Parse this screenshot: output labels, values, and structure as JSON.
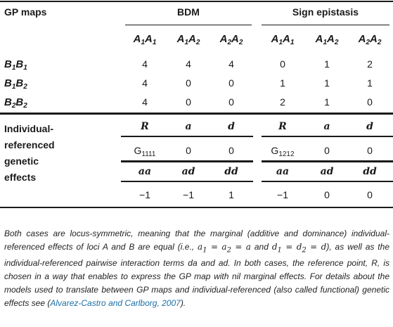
{
  "table": {
    "corner_label": "GP maps",
    "groups": [
      "BDM",
      "Sign epistasis"
    ],
    "genotypes_a": [
      {
        "base": "A",
        "s1": "1",
        "mid": "A",
        "s2": "1"
      },
      {
        "base": "A",
        "s1": "1",
        "mid": "A",
        "s2": "2"
      },
      {
        "base": "A",
        "s1": "2",
        "mid": "A",
        "s2": "2"
      },
      {
        "base": "A",
        "s1": "1",
        "mid": "A",
        "s2": "1"
      },
      {
        "base": "A",
        "s1": "1",
        "mid": "A",
        "s2": "2"
      },
      {
        "base": "A",
        "s1": "2",
        "mid": "A",
        "s2": "2"
      }
    ],
    "rows": [
      {
        "label": {
          "base": "B",
          "s1": "1",
          "mid": "B",
          "s2": "1"
        },
        "values": [
          "4",
          "4",
          "4",
          "0",
          "1",
          "2"
        ]
      },
      {
        "label": {
          "base": "B",
          "s1": "1",
          "mid": "B",
          "s2": "2"
        },
        "values": [
          "4",
          "0",
          "0",
          "1",
          "1",
          "1"
        ]
      },
      {
        "label": {
          "base": "B",
          "s1": "2",
          "mid": "B",
          "s2": "2"
        },
        "values": [
          "4",
          "0",
          "0",
          "2",
          "1",
          "0"
        ]
      }
    ],
    "effects_label_lines": [
      "Individual-",
      "referenced",
      "genetic",
      "effects"
    ],
    "effects_header_1": [
      "R",
      "a",
      "d",
      "R",
      "a",
      "d"
    ],
    "effects_row_1": [
      {
        "g": "G",
        "sub": "1111"
      },
      {
        "v": "0"
      },
      {
        "v": "0"
      },
      {
        "g": "G",
        "sub": "1212"
      },
      {
        "v": "0"
      },
      {
        "v": "0"
      }
    ],
    "effects_header_2": [
      "aa",
      "ad",
      "dd",
      "aa",
      "ad",
      "dd"
    ],
    "effects_row_2": [
      "−1",
      "−1",
      "1",
      "−1",
      "0",
      "0"
    ]
  },
  "footnote": {
    "t1": "Both cases are locus-symmetric, meaning that the marginal (additive and dominance) individual-referenced effects of loci A and B are equal (i.e., ",
    "m1": "a",
    "m1s": "1",
    "m2": " = a",
    "m2s": "2",
    "m3": " = a",
    "t2": " and ",
    "m4": "d",
    "m4s": "1",
    "m5": " = d",
    "m5s": "2",
    "m6": " = d",
    "t3": "), as well as the individual-referenced pairwise interaction terms da and ad. In both cases, the reference point, R, is chosen in a way that enables to express the GP map with nil marginal effects. For details about the models used to translate between GP maps and individual-referenced (also called functional) genetic effects see (",
    "cite": "Alvarez-Castro and Carlborg, 2007",
    "t4": ")."
  }
}
